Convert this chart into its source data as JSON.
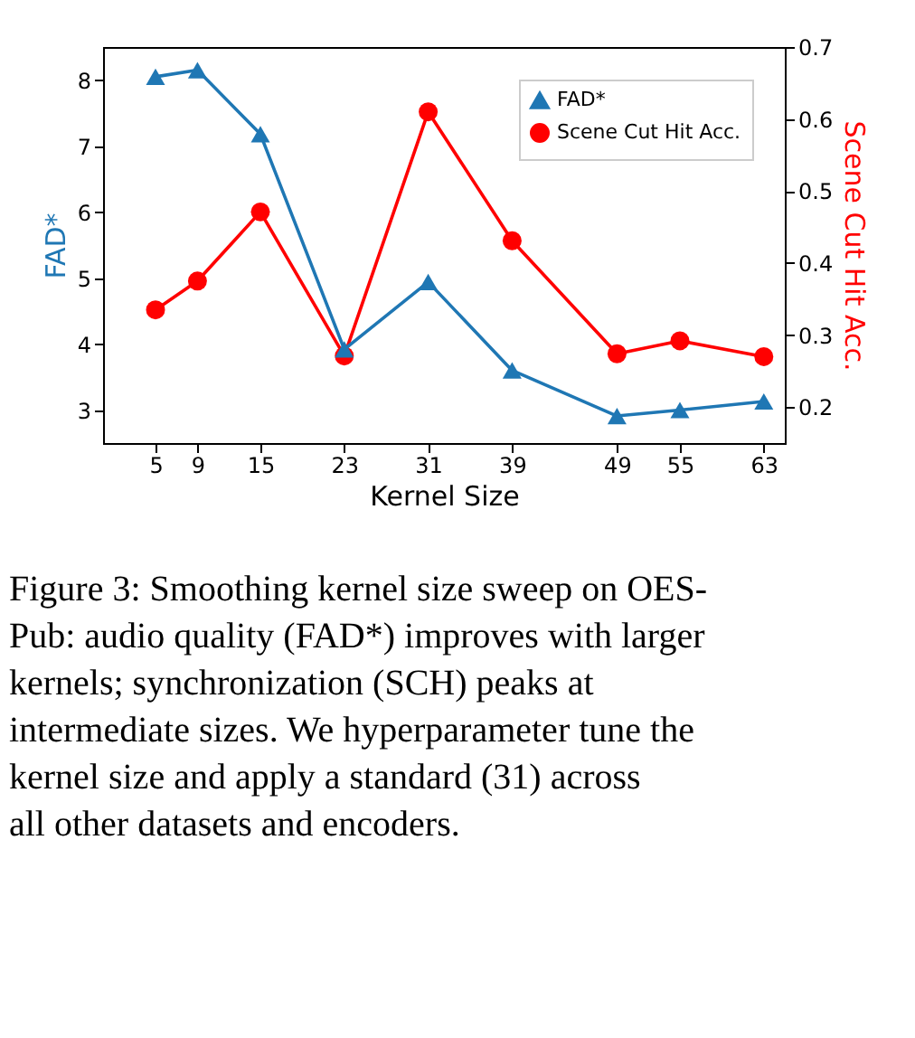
{
  "chart_data": {
    "type": "line",
    "xlabel": "Kernel Size",
    "ylabel": "FAD*",
    "y2label": "Scene Cut Hit Acc.",
    "x": [
      5,
      9,
      15,
      23,
      31,
      39,
      49,
      55,
      63
    ],
    "xlim": [
      0,
      65
    ],
    "xticks": [
      5,
      9,
      15,
      23,
      31,
      39,
      49,
      55,
      63
    ],
    "ylim": [
      2.5,
      8.5
    ],
    "yticks": [
      3,
      4,
      5,
      6,
      7,
      8
    ],
    "y2lim": [
      0.15,
      0.7
    ],
    "y2ticks": [
      0.2,
      0.3,
      0.4,
      0.5,
      0.6,
      0.7
    ],
    "series": [
      {
        "name": "FAD*",
        "color": "#1f77b4",
        "marker": "triangle",
        "line_style": "solid",
        "values": [
          8.05,
          8.15,
          7.18,
          3.92,
          4.94,
          3.6,
          2.91,
          3.0,
          3.13
        ]
      },
      {
        "name": "Scene Cut Hit Acc.",
        "color": "#ff0000",
        "marker": "circle",
        "line_style": "solid",
        "axis": "y2",
        "values": [
          0.335,
          0.375,
          0.471,
          0.271,
          0.61,
          0.431,
          0.274,
          0.292,
          0.27
        ]
      }
    ],
    "legend": "top right",
    "grid": false,
    "annotations": [
      "Figure 3: Smoothing kernel size sweep on OES-Pub: audio quality (FAD*) improves with larger kernels; synchronization (SCH) peaks at intermediate sizes. We hyperparameter tune the kernel size and apply a standard (31) across all other datasets and encoders."
    ]
  }
}
